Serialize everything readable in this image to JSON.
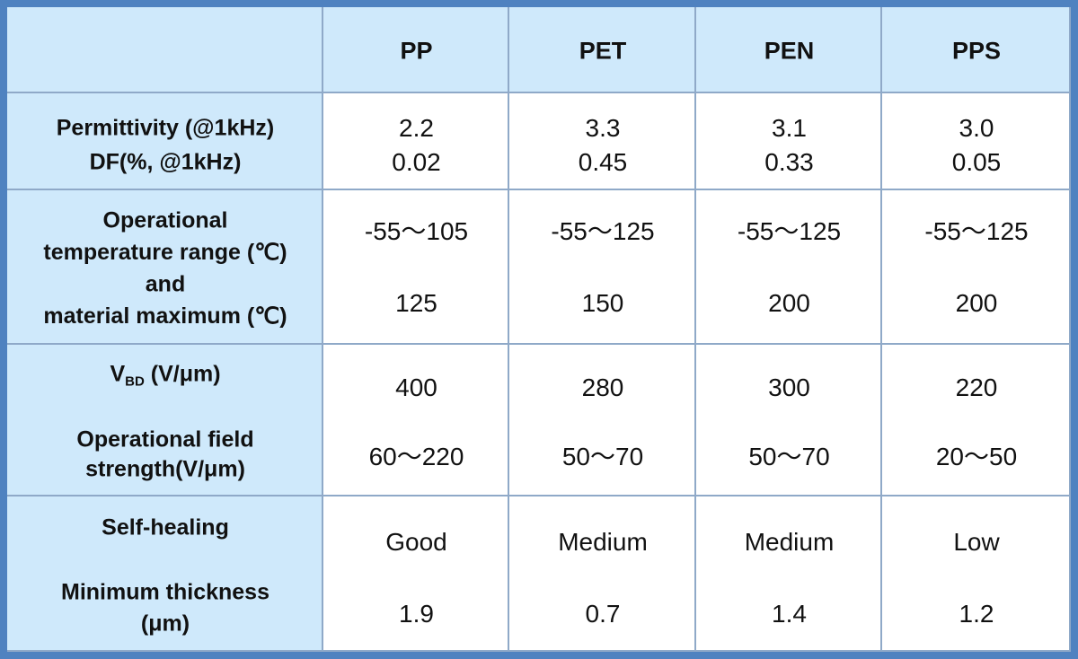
{
  "table": {
    "columns": [
      "PP",
      "PET",
      "PEN",
      "PPS"
    ],
    "rows": [
      {
        "label_lines": [
          "Permittivity (@1kHz)",
          "DF(%, @1kHz)"
        ],
        "values": [
          [
            "2.2",
            "0.02"
          ],
          [
            "3.3",
            "0.45"
          ],
          [
            "3.1",
            "0.33"
          ],
          [
            "3.0",
            "0.05"
          ]
        ]
      },
      {
        "label_lines": [
          "Operational",
          "temperature range (℃)",
          "and",
          "material maximum (℃)"
        ],
        "values": [
          [
            "-55～105",
            "125"
          ],
          [
            "-55～125",
            "150"
          ],
          [
            "-55～125",
            "200"
          ],
          [
            "-55～125",
            "200"
          ]
        ]
      },
      {
        "label_lines": [
          {
            "text": "V",
            "sub": "BD",
            "after": " (V/μm)"
          },
          "Operational field",
          "strength(V/μm)"
        ],
        "values": [
          [
            "400",
            "60～220"
          ],
          [
            "280",
            "50～70"
          ],
          [
            "300",
            "50～70"
          ],
          [
            "220",
            "20～50"
          ]
        ]
      },
      {
        "label_lines": [
          "Self-healing",
          "Minimum thickness",
          "(μm)"
        ],
        "values": [
          [
            "Good",
            "1.9"
          ],
          [
            "Medium",
            "0.7"
          ],
          [
            "Medium",
            "1.4"
          ],
          [
            "Low",
            "1.2"
          ]
        ]
      }
    ]
  }
}
